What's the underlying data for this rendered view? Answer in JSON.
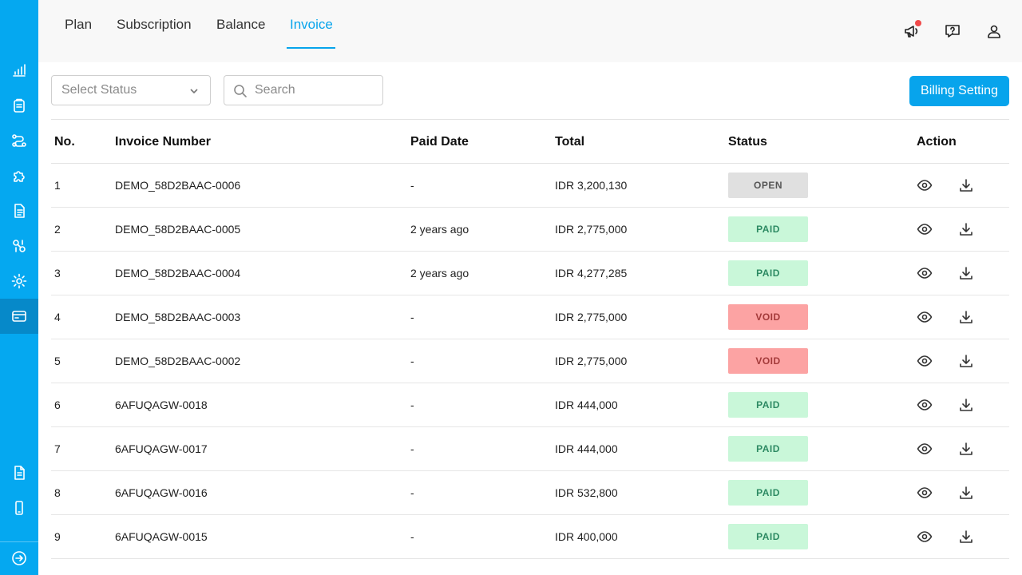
{
  "tabs": [
    {
      "label": "Plan"
    },
    {
      "label": "Subscription"
    },
    {
      "label": "Balance"
    },
    {
      "label": "Invoice"
    }
  ],
  "active_tab": "Invoice",
  "top_icons": [
    "megaphone-icon",
    "help-icon",
    "user-icon"
  ],
  "sidebar_icons": [
    "bar-chart-icon",
    "clipboard-icon",
    "flow-icon",
    "puzzle-icon",
    "document-icon",
    "transfer-icon",
    "gear-icon",
    "credit-card-icon",
    "file-text-icon",
    "smartphone-icon",
    "logout-icon"
  ],
  "filters": {
    "status_placeholder": "Select Status",
    "search_placeholder": "Search"
  },
  "billing_button": "Billing Setting",
  "table": {
    "headers": {
      "no": "No.",
      "invoice_number": "Invoice Number",
      "paid_date": "Paid Date",
      "total": "Total",
      "status": "Status",
      "action": "Action"
    },
    "rows": [
      {
        "no": "1",
        "invoice_number": "DEMO_58D2BAAC-0006",
        "paid_date": "-",
        "total": "IDR 3,200,130",
        "status": "OPEN"
      },
      {
        "no": "2",
        "invoice_number": "DEMO_58D2BAAC-0005",
        "paid_date": "2 years ago",
        "total": "IDR 2,775,000",
        "status": "PAID"
      },
      {
        "no": "3",
        "invoice_number": "DEMO_58D2BAAC-0004",
        "paid_date": "2 years ago",
        "total": "IDR 4,277,285",
        "status": "PAID"
      },
      {
        "no": "4",
        "invoice_number": "DEMO_58D2BAAC-0003",
        "paid_date": "-",
        "total": "IDR 2,775,000",
        "status": "VOID"
      },
      {
        "no": "5",
        "invoice_number": "DEMO_58D2BAAC-0002",
        "paid_date": "-",
        "total": "IDR 2,775,000",
        "status": "VOID"
      },
      {
        "no": "6",
        "invoice_number": "6AFUQAGW-0018",
        "paid_date": "-",
        "total": "IDR 444,000",
        "status": "PAID"
      },
      {
        "no": "7",
        "invoice_number": "6AFUQAGW-0017",
        "paid_date": "-",
        "total": "IDR 444,000",
        "status": "PAID"
      },
      {
        "no": "8",
        "invoice_number": "6AFUQAGW-0016",
        "paid_date": "-",
        "total": "IDR 532,800",
        "status": "PAID"
      },
      {
        "no": "9",
        "invoice_number": "6AFUQAGW-0015",
        "paid_date": "-",
        "total": "IDR 400,000",
        "status": "PAID"
      }
    ]
  },
  "colors": {
    "brand": "#05a8f0",
    "accent": "#07a4ec",
    "open_bg": "#e0e0e0",
    "paid_bg": "#c9f7d9",
    "void_bg": "#fca3a3"
  }
}
